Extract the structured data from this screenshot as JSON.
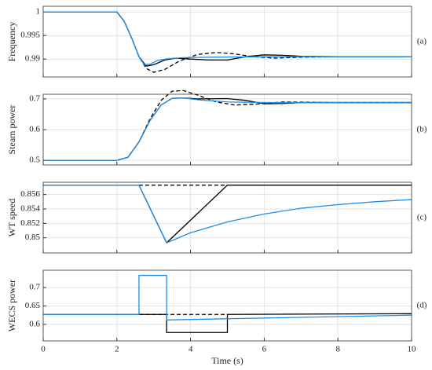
{
  "chart_data": [
    {
      "type": "line",
      "ylabel": "Frequency",
      "annotation": "(a)",
      "xlim": [
        0,
        10
      ],
      "xticks": [
        0,
        2,
        4,
        6,
        8,
        10
      ],
      "ylim": [
        0.9862,
        1.0012
      ],
      "yticks": [
        0.99,
        0.995,
        1
      ],
      "grid": true,
      "series": [
        {
          "color": "#000000",
          "style": "dashed",
          "x": [
            0,
            2,
            2.2,
            2.4,
            2.6,
            2.8,
            3,
            3.3,
            3.7,
            4.2,
            4.7,
            5.2,
            5.7,
            6.3,
            7,
            8,
            10
          ],
          "values": [
            1,
            1,
            0.998,
            0.9945,
            0.9905,
            0.988,
            0.9872,
            0.9878,
            0.9896,
            0.991,
            0.9914,
            0.9911,
            0.9905,
            0.9902,
            0.9904,
            0.9905,
            0.9905
          ]
        },
        {
          "color": "#000000",
          "style": "solid",
          "x": [
            0,
            2,
            2.2,
            2.4,
            2.6,
            2.8,
            3,
            3.3,
            3.6,
            4,
            4.5,
            5,
            5.5,
            6,
            6.5,
            7,
            8,
            10
          ],
          "values": [
            1,
            1,
            0.998,
            0.9945,
            0.9905,
            0.9885,
            0.9888,
            0.9898,
            0.9902,
            0.99,
            0.9898,
            0.9898,
            0.9905,
            0.9909,
            0.9908,
            0.9906,
            0.9905,
            0.9905
          ]
        },
        {
          "color": "#1f8ee6",
          "style": "solid",
          "x": [
            0,
            2,
            2.2,
            2.4,
            2.6,
            2.75,
            2.9,
            3.1,
            3.4,
            3.8,
            4.5,
            6,
            8,
            10
          ],
          "values": [
            1,
            1,
            0.998,
            0.9945,
            0.9905,
            0.9888,
            0.9889,
            0.9897,
            0.9901,
            0.9903,
            0.9904,
            0.9905,
            0.9905,
            0.9905
          ]
        }
      ]
    },
    {
      "type": "line",
      "ylabel": "Steam power",
      "annotation": "(b)",
      "xlim": [
        0,
        10
      ],
      "xticks": [
        0,
        2,
        4,
        6,
        8,
        10
      ],
      "ylim": [
        0.485,
        0.715
      ],
      "yticks": [
        0.5,
        0.6,
        0.7
      ],
      "grid": true,
      "series": [
        {
          "color": "#000000",
          "style": "dashed",
          "x": [
            0,
            2,
            2.3,
            2.6,
            2.9,
            3.2,
            3.5,
            3.8,
            4.2,
            4.7,
            5.2,
            5.8,
            6.5,
            8,
            10
          ],
          "values": [
            0.5,
            0.5,
            0.51,
            0.56,
            0.635,
            0.695,
            0.725,
            0.727,
            0.712,
            0.69,
            0.68,
            0.683,
            0.69,
            0.688,
            0.688
          ]
        },
        {
          "color": "#000000",
          "style": "solid",
          "x": [
            0,
            2,
            2.3,
            2.6,
            2.9,
            3.2,
            3.5,
            3.8,
            4.2,
            5,
            5.5,
            6,
            6.5,
            7,
            8,
            10
          ],
          "values": [
            0.5,
            0.5,
            0.51,
            0.56,
            0.63,
            0.68,
            0.702,
            0.703,
            0.7,
            0.701,
            0.695,
            0.684,
            0.685,
            0.688,
            0.688,
            0.688
          ]
        },
        {
          "color": "#1f8ee6",
          "style": "solid",
          "x": [
            0,
            2,
            2.3,
            2.6,
            2.9,
            3.2,
            3.5,
            3.8,
            4.2,
            5,
            6,
            8,
            10
          ],
          "values": [
            0.5,
            0.5,
            0.51,
            0.56,
            0.63,
            0.68,
            0.702,
            0.703,
            0.697,
            0.69,
            0.688,
            0.688,
            0.688
          ]
        }
      ]
    },
    {
      "type": "line",
      "ylabel": "WT speed",
      "annotation": "(c)",
      "xlim": [
        0,
        10
      ],
      "xticks": [
        0,
        2,
        4,
        6,
        8,
        10
      ],
      "ylim": [
        0.8479,
        0.8577
      ],
      "yticks": [
        0.85,
        0.852,
        0.854,
        0.856
      ],
      "grid": true,
      "series": [
        {
          "color": "#000000",
          "style": "dashed",
          "x": [
            2.6,
            5
          ],
          "values": [
            0.8573,
            0.8573
          ]
        },
        {
          "color": "#000000",
          "style": "solid",
          "x": [
            0,
            2.6,
            3.35,
            5,
            10
          ],
          "values": [
            0.8573,
            0.8573,
            0.8493,
            0.8573,
            0.8573
          ]
        },
        {
          "color": "#1f8ee6",
          "style": "solid",
          "x": [
            0,
            2.6,
            3.35,
            4,
            5,
            6,
            7,
            8,
            9,
            10
          ],
          "values": [
            0.8573,
            0.8573,
            0.8493,
            0.8507,
            0.8522,
            0.8533,
            0.8541,
            0.8546,
            0.855,
            0.8553
          ]
        }
      ]
    },
    {
      "type": "line",
      "ylabel": "WECS power",
      "annotation": "(d)",
      "xlabel": "Time (s)",
      "xlim": [
        0,
        10
      ],
      "xticks": [
        0,
        2,
        4,
        6,
        8,
        10
      ],
      "ylim": [
        0.555,
        0.747
      ],
      "yticks": [
        0.6,
        0.65,
        0.7
      ],
      "grid": true,
      "series": [
        {
          "color": "#000000",
          "style": "dashed",
          "x": [
            2.6,
            5
          ],
          "values": [
            0.627,
            0.627
          ]
        },
        {
          "color": "#000000",
          "style": "solid",
          "x": [
            0,
            3.35,
            3.35,
            5,
            5,
            10
          ],
          "values": [
            0.627,
            0.627,
            0.578,
            0.578,
            0.627,
            0.629
          ]
        },
        {
          "color": "#1f8ee6",
          "style": "solid",
          "x": [
            0,
            2.6,
            2.6,
            3.35,
            3.35,
            10
          ],
          "values": [
            0.627,
            0.627,
            0.733,
            0.733,
            0.612,
            0.625
          ]
        }
      ]
    }
  ]
}
